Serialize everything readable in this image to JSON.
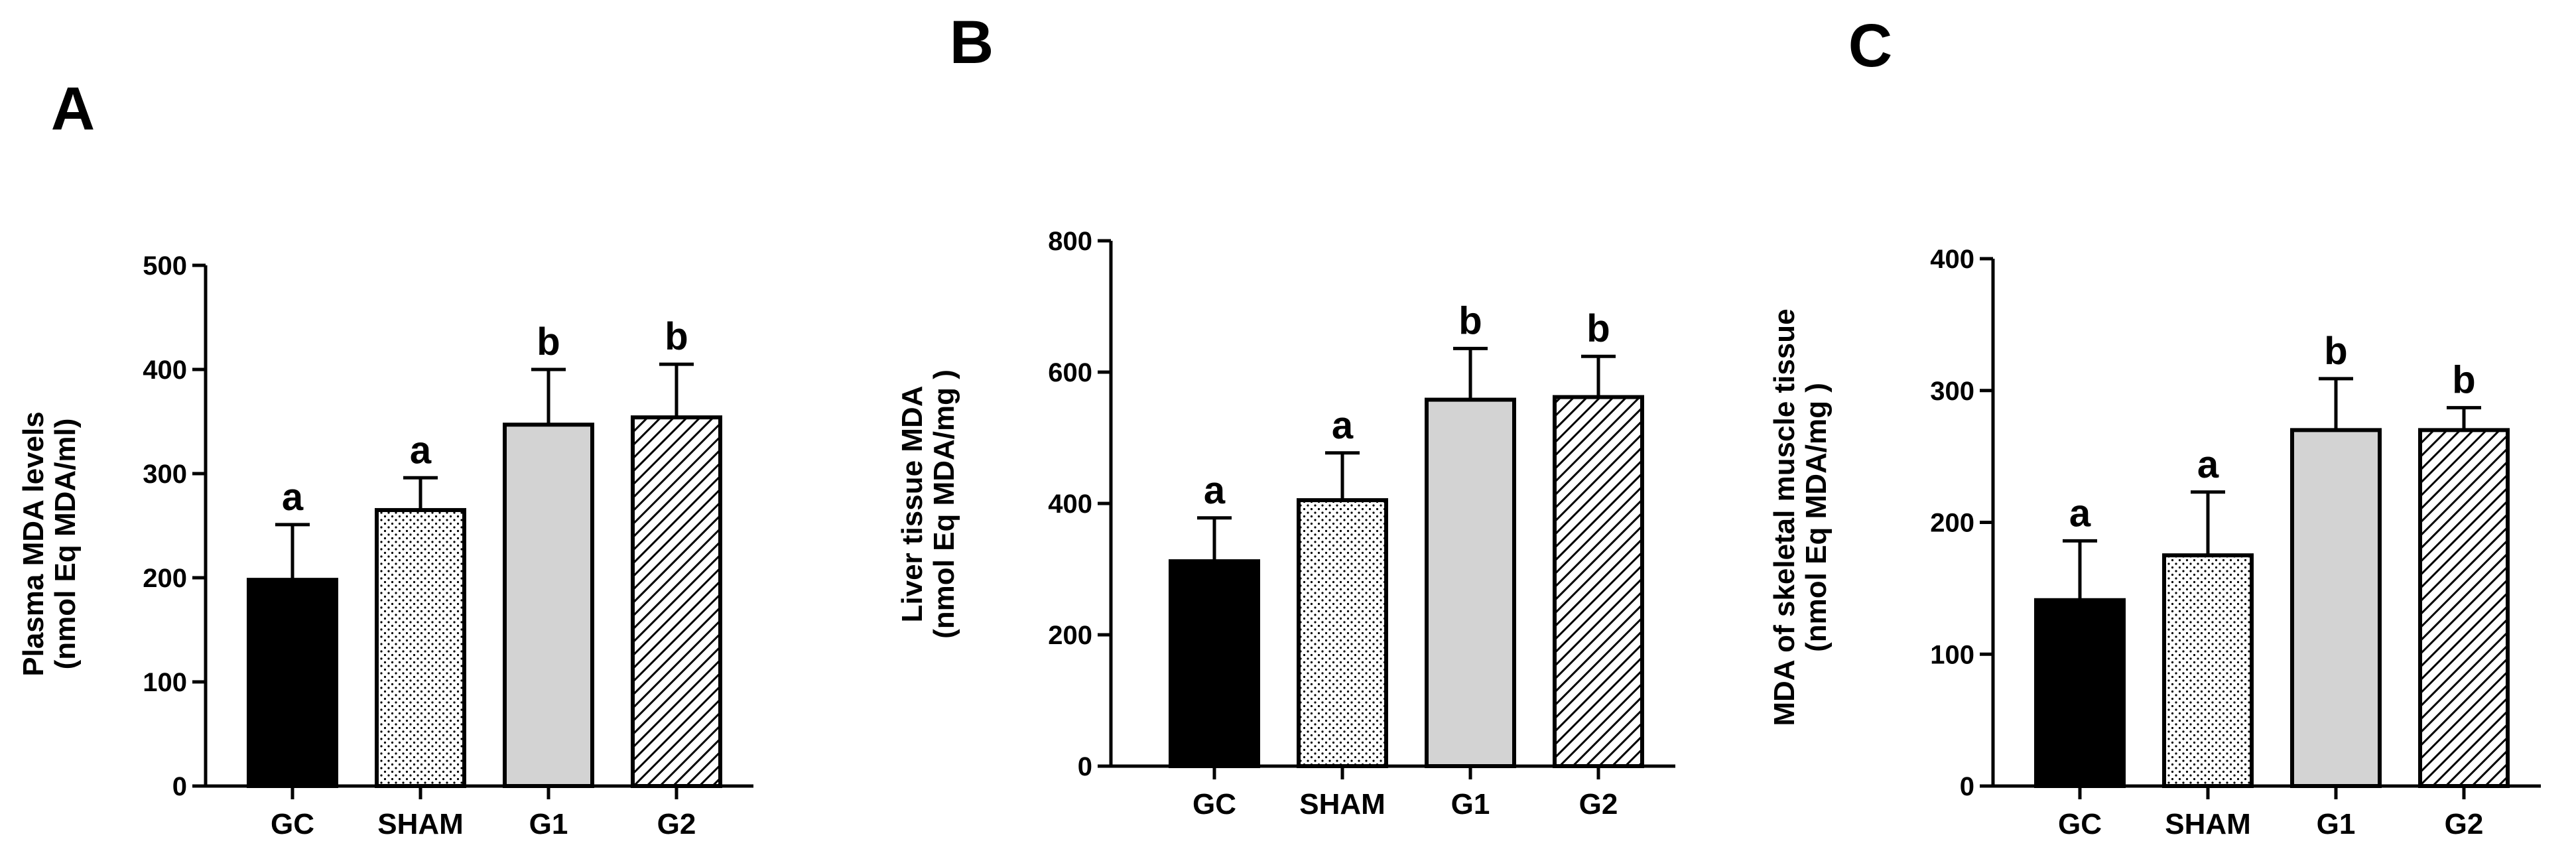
{
  "chart_data": [
    {
      "panel": "A",
      "type": "bar",
      "categories": [
        "GC",
        "SHAM",
        "G1",
        "G2"
      ],
      "values": [
        198,
        265,
        347,
        354
      ],
      "errors": [
        53,
        31,
        53,
        51
      ],
      "significance": [
        "a",
        "a",
        "b",
        "b"
      ],
      "fills": [
        "solid-black",
        "dots",
        "light-gray",
        "diagonal-hatch"
      ],
      "ylabel": [
        "Plasma MDA levels",
        "(nmol Eq MDA/ml)"
      ],
      "xlabel": "",
      "ylim": [
        0,
        500
      ],
      "yticks": [
        0,
        100,
        200,
        300,
        400,
        500
      ],
      "grid": false
    },
    {
      "panel": "B",
      "type": "bar",
      "categories": [
        "GC",
        "SHAM",
        "G1",
        "G2"
      ],
      "values": [
        312,
        405,
        558,
        562
      ],
      "errors": [
        66,
        72,
        78,
        62
      ],
      "significance": [
        "a",
        "a",
        "b",
        "b"
      ],
      "fills": [
        "solid-black",
        "dots",
        "light-gray",
        "diagonal-hatch"
      ],
      "ylabel": [
        "Liver tissue MDA",
        "(nmol Eq MDA/mg )"
      ],
      "xlabel": "",
      "ylim": [
        0,
        800
      ],
      "yticks": [
        0,
        200,
        400,
        600,
        800
      ],
      "grid": false
    },
    {
      "panel": "C",
      "type": "bar",
      "categories": [
        "GC",
        "SHAM",
        "G1",
        "G2"
      ],
      "values": [
        141,
        175,
        270,
        270
      ],
      "errors": [
        45,
        48,
        39,
        17
      ],
      "significance": [
        "a",
        "a",
        "b",
        "b"
      ],
      "fills": [
        "solid-black",
        "dots",
        "light-gray",
        "diagonal-hatch"
      ],
      "ylabel": [
        "MDA of skeletal muscle tissue",
        "(nmol Eq MDA/mg )"
      ],
      "xlabel": "",
      "ylim": [
        0,
        400
      ],
      "yticks": [
        0,
        100,
        200,
        300,
        400
      ],
      "grid": false
    }
  ],
  "colors": {
    "ink": "#000000",
    "light_gray": "#d3d3d3",
    "background": "#ffffff"
  }
}
